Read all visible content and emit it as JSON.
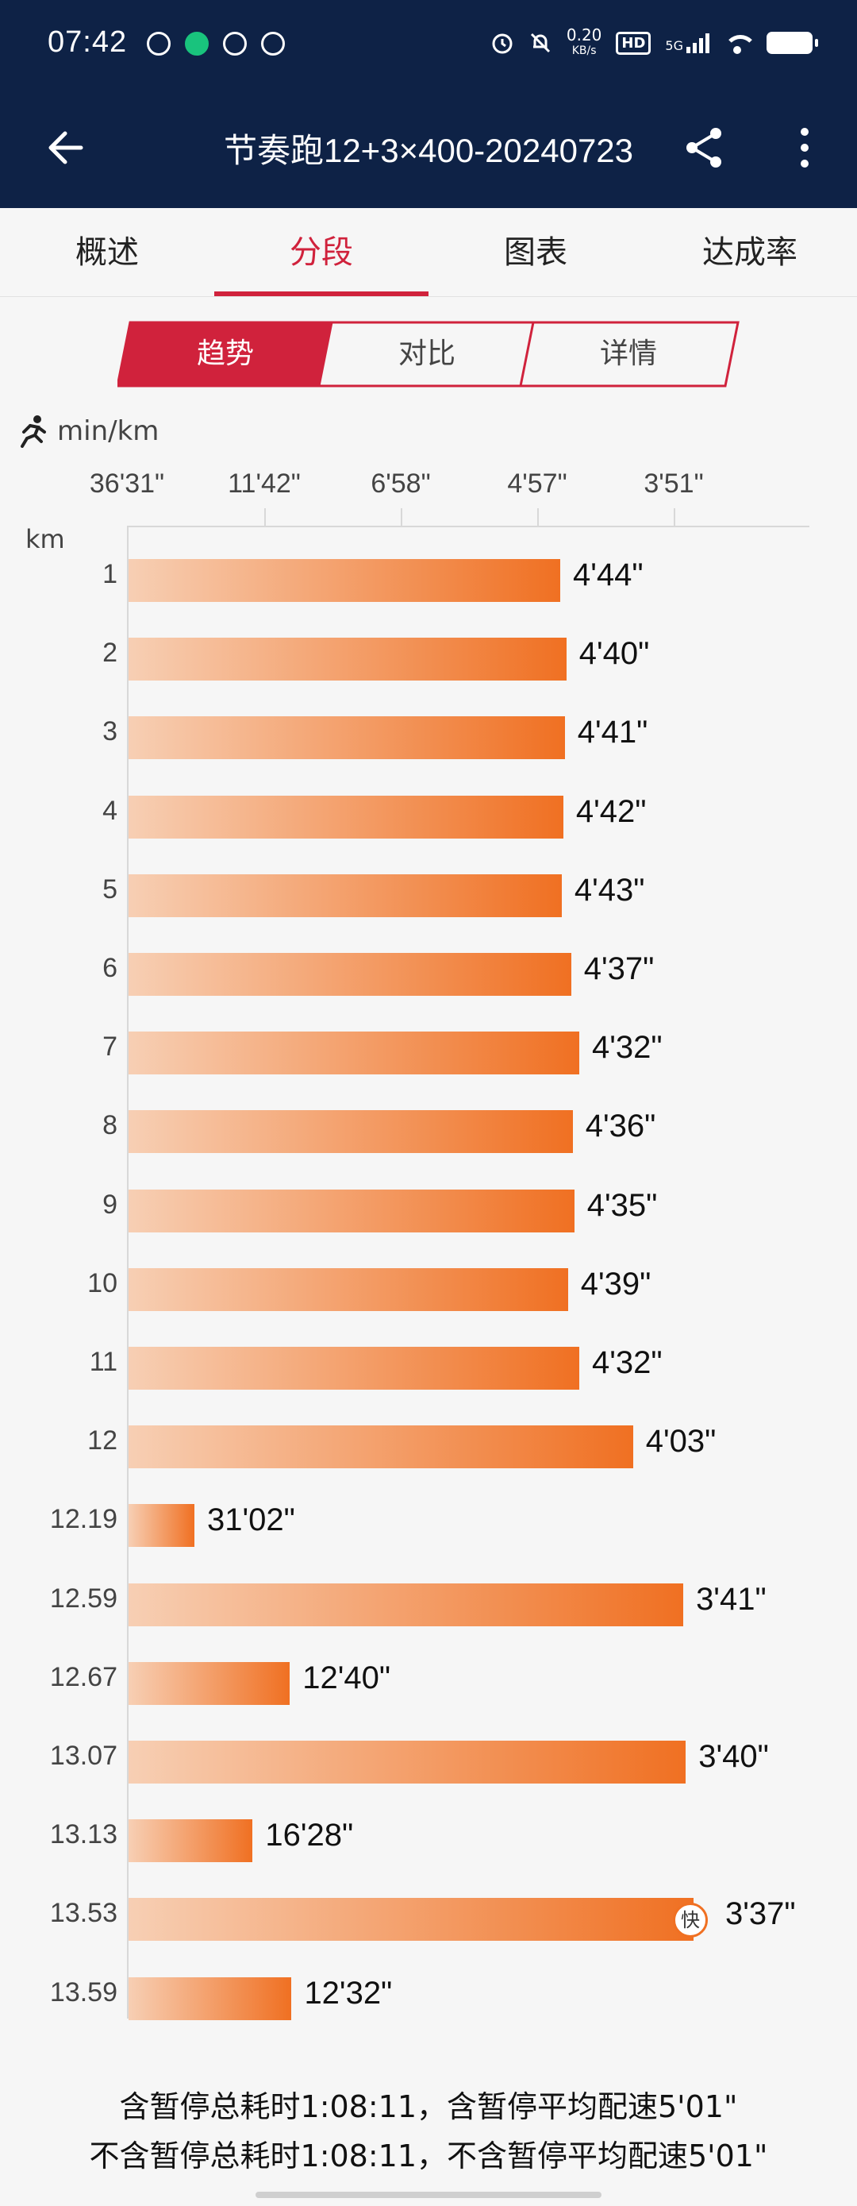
{
  "status": {
    "time": "07:42",
    "speed_top": "0.20",
    "speed_bottom": "KB/s",
    "hd": "HD",
    "net": "5G"
  },
  "header": {
    "title": "节奏跑12+3×400-20240723"
  },
  "tabs": [
    {
      "label": "概述",
      "active": false
    },
    {
      "label": "分段",
      "active": true
    },
    {
      "label": "图表",
      "active": false
    },
    {
      "label": "达成率",
      "active": false
    }
  ],
  "segment": {
    "options": [
      "趋势",
      "对比",
      "详情"
    ],
    "active_index": 0,
    "active_color": "#d0223c"
  },
  "chart_meta": {
    "unit": "min/km",
    "row_axis_label": "km",
    "fast_badge": "快"
  },
  "chart_data": {
    "type": "bar",
    "orientation": "horizontal",
    "title": "",
    "xlabel": "min/km",
    "ylabel": "km",
    "x_ticks": [
      "36'31\"",
      "11'42\"",
      "6'58\"",
      "4'57\"",
      "3'51\""
    ],
    "categories": [
      "1",
      "2",
      "3",
      "4",
      "5",
      "6",
      "7",
      "8",
      "9",
      "10",
      "11",
      "12",
      "12.19",
      "12.59",
      "12.67",
      "13.07",
      "13.13",
      "13.53",
      "13.59"
    ],
    "labels": [
      "4'44\"",
      "4'40\"",
      "4'41\"",
      "4'42\"",
      "4'43\"",
      "4'37\"",
      "4'32\"",
      "4'36\"",
      "4'35\"",
      "4'39\"",
      "4'32\"",
      "4'03\"",
      "31'02\"",
      "3'41\"",
      "12'40\"",
      "3'40\"",
      "16'28\"",
      "3'37\"",
      "12'32\""
    ],
    "pace_seconds": [
      284,
      280,
      281,
      282,
      283,
      277,
      272,
      276,
      275,
      279,
      272,
      243,
      1862,
      221,
      760,
      220,
      988,
      217,
      752
    ],
    "fastest_index": 17,
    "bar_colors": [
      "#f7cfb4",
      "#f07022"
    ]
  },
  "summary": {
    "line1": "含暂停总耗时1:08:11，含暂停平均配速5'01\"",
    "line2": "不含暂停总耗时1:08:11，不含暂停平均配速5'01\""
  }
}
